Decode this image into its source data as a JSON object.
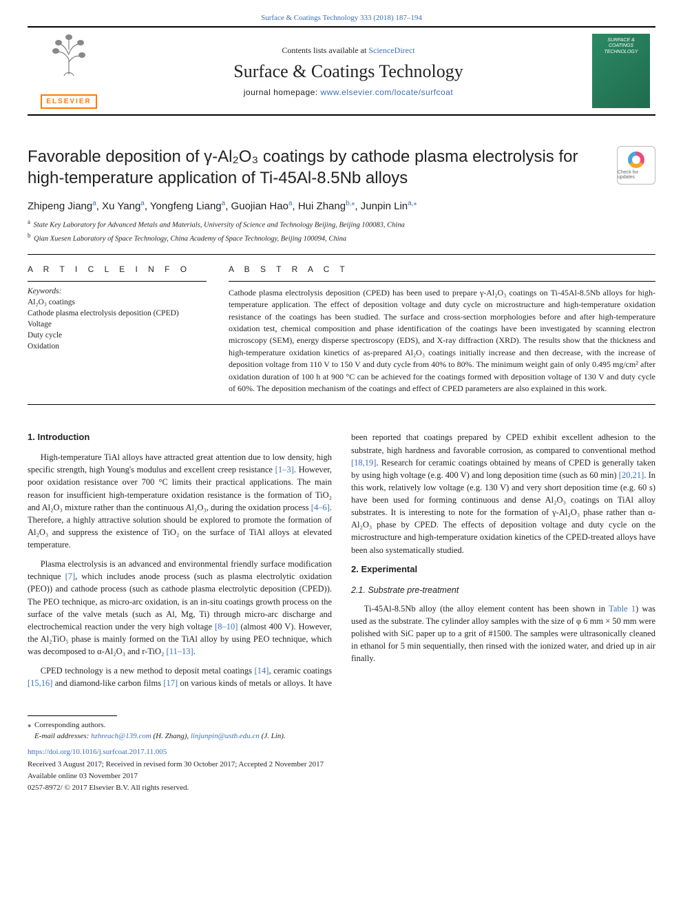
{
  "top": {
    "citation_link": "Surface & Coatings Technology 333 (2018) 187–194",
    "contents_prefix": "Contents lists available at ",
    "contents_link": "ScienceDirect",
    "journal_name": "Surface & Coatings Technology",
    "homepage_prefix": "journal homepage: ",
    "homepage_url": "www.elsevier.com/locate/surfcoat",
    "publisher": "ELSEVIER",
    "cover_text": "SURFACE & COATINGS TECHNOLOGY"
  },
  "title": "Favorable deposition of γ-Al₂O₃ coatings by cathode plasma electrolysis for high-temperature application of Ti-45Al-8.5Nb alloys",
  "crossmark": "Check for updates",
  "authors_html": "Zhipeng Jiang<sup>a</sup>, Xu Yang<sup>a</sup>, Yongfeng Liang<sup>a</sup>, Guojian Hao<sup>a</sup>, Hui Zhang<sup>b,⁎</sup>, Junpin Lin<sup>a,⁎</sup>",
  "affiliations": [
    {
      "sup": "a",
      "text": "State Key Laboratory for Advanced Metals and Materials, University of Science and Technology Beijing, Beijing 100083, China"
    },
    {
      "sup": "b",
      "text": "Qian Xuesen Laboratory of Space Technology, China Academy of Space Technology, Beijing 100094, China"
    }
  ],
  "info_head": "A R T I C L E  I N F O",
  "abs_head": "A B S T R A C T",
  "keywords_label": "Keywords:",
  "keywords": [
    "Al₂O₃ coatings",
    "Cathode plasma electrolysis deposition (CPED)",
    "Voltage",
    "Duty cycle",
    "Oxidation"
  ],
  "abstract": "Cathode plasma electrolysis deposition (CPED) has been used to prepare γ-Al₂O₃ coatings on Ti-45Al-8.5Nb alloys for high-temperature application. The effect of deposition voltage and duty cycle on microstructure and high-temperature oxidation resistance of the coatings has been studied. The surface and cross-section morphologies before and after high-temperature oxidation test, chemical composition and phase identification of the coatings have been investigated by scanning electron microscopy (SEM), energy disperse spectroscopy (EDS), and X-ray diffraction (XRD). The results show that the thickness and high-temperature oxidation kinetics of as-prepared Al₂O₃ coatings initially increase and then decrease, with the increase of deposition voltage from 110 V to 150 V and duty cycle from 40% to 80%. The minimum weight gain of only 0.495 mg/cm² after oxidation duration of 100 h at 900 °C can be achieved for the coatings formed with deposition voltage of 130 V and duty cycle of 60%. The deposition mechanism of the coatings and effect of CPED parameters are also explained in this work.",
  "sections": {
    "intro_head": "1. Introduction",
    "intro_p1_pre": "High-temperature TiAl alloys have attracted great attention due to low density, high specific strength, high Young's modulus and excellent creep resistance ",
    "intro_p1_ref1": "[1–3]",
    "intro_p1_mid": ". However, poor oxidation resistance over 700 °C limits their practical applications. The main reason for insufficient high-temperature oxidation resistance is the formation of TiO₂ and Al₂O₃ mixture rather than the continuous Al₂O₃, during the oxidation process ",
    "intro_p1_ref2": "[4–6]",
    "intro_p1_post": ". Therefore, a highly attractive solution should be explored to promote the formation of Al₂O₃ and suppress the existence of TiO₂ on the surface of TiAl alloys at elevated temperature.",
    "intro_p2_pre": "Plasma electrolysis is an advanced and environmental friendly surface modification technique ",
    "intro_p2_ref1": "[7]",
    "intro_p2_mid": ", which includes anode process (such as plasma electrolytic oxidation (PEO)) and cathode process (such as cathode plasma electrolytic deposition (CPED)). The PEO technique, as micro-arc oxidation, is an in-situ coatings growth process on the surface of the valve metals (such as Al, Mg, Ti) through micro-arc discharge and electrochemical reaction under the very high voltage ",
    "intro_p2_ref2": "[8–10]",
    "intro_p2_mid2": " (almost 400 V). However, the Al₂TiO₅ phase is mainly formed on the TiAl alloy by using PEO technique, which was decomposed to α-Al₂O₃ and r-TiO₂ ",
    "intro_p2_ref3": "[11–13]",
    "intro_p2_post": ".",
    "intro_p3_pre": "CPED technology is a new method to deposit metal coatings ",
    "intro_p3_ref1": "[14]",
    "intro_p3_mid": ", ceramic coatings ",
    "intro_p3_ref2": "[15,16]",
    "intro_p3_mid2": " and diamond-like carbon films ",
    "intro_p3_ref3": "[17]",
    "intro_p3_post": " on various kinds of metals or alloys. It have been reported that coatings prepared by CPED exhibit excellent adhesion to the substrate, high hardness and favorable corrosion, as compared to conventional method ",
    "intro_p3_ref4": "[18,19]",
    "intro_p3_mid3": ". Research for ceramic coatings obtained by means of CPED is generally taken by using high voltage (e.g. 400 V) and long deposition time (such as 60 min) ",
    "intro_p3_ref5": "[20,21]",
    "intro_p3_post2": ". In this work, relatively low voltage (e.g. 130 V) and very short deposition time (e.g. 60 s) have been used for forming continuous and dense Al₂O₃ coatings on TiAl alloy substrates. It is interesting to note for the formation of γ-Al₂O₃ phase rather than α-Al₂O₃ phase by CPED. The effects of deposition voltage and duty cycle on the microstructure and high-temperature oxidation kinetics of the CPED-treated alloys have been also systematically studied.",
    "exp_head": "2. Experimental",
    "exp_sub": "2.1. Substrate pre-treatment",
    "exp_p1_pre": "Ti-45Al-8.5Nb alloy (the alloy element content has been shown in ",
    "exp_p1_ref": "Table 1",
    "exp_p1_post": ") was used as the substrate. The cylinder alloy samples with the size of φ 6 mm × 50 mm were polished with SiC paper up to a grit of #1500. The samples were ultrasonically cleaned in ethanol for 5 min sequentially, then rinsed with the ionized water, and dried up in air finally."
  },
  "footer": {
    "corr": "Corresponding authors.",
    "email_label": "E-mail addresses: ",
    "email1": "hzhreach@139.com",
    "email1_who": " (H. Zhang), ",
    "email2": "linjunpin@ustb.edu.cn",
    "email2_who": " (J. Lin).",
    "doi": "https://doi.org/10.1016/j.surfcoat.2017.11.005",
    "history": "Received 3 August 2017; Received in revised form 30 October 2017; Accepted 2 November 2017",
    "online": "Available online 03 November 2017",
    "copyright": "0257-8972/ © 2017 Elsevier B.V. All rights reserved."
  },
  "colors": {
    "link": "#3b6fb6",
    "elsevier": "#ff7a00",
    "cover_bg": "#2a8a66"
  }
}
